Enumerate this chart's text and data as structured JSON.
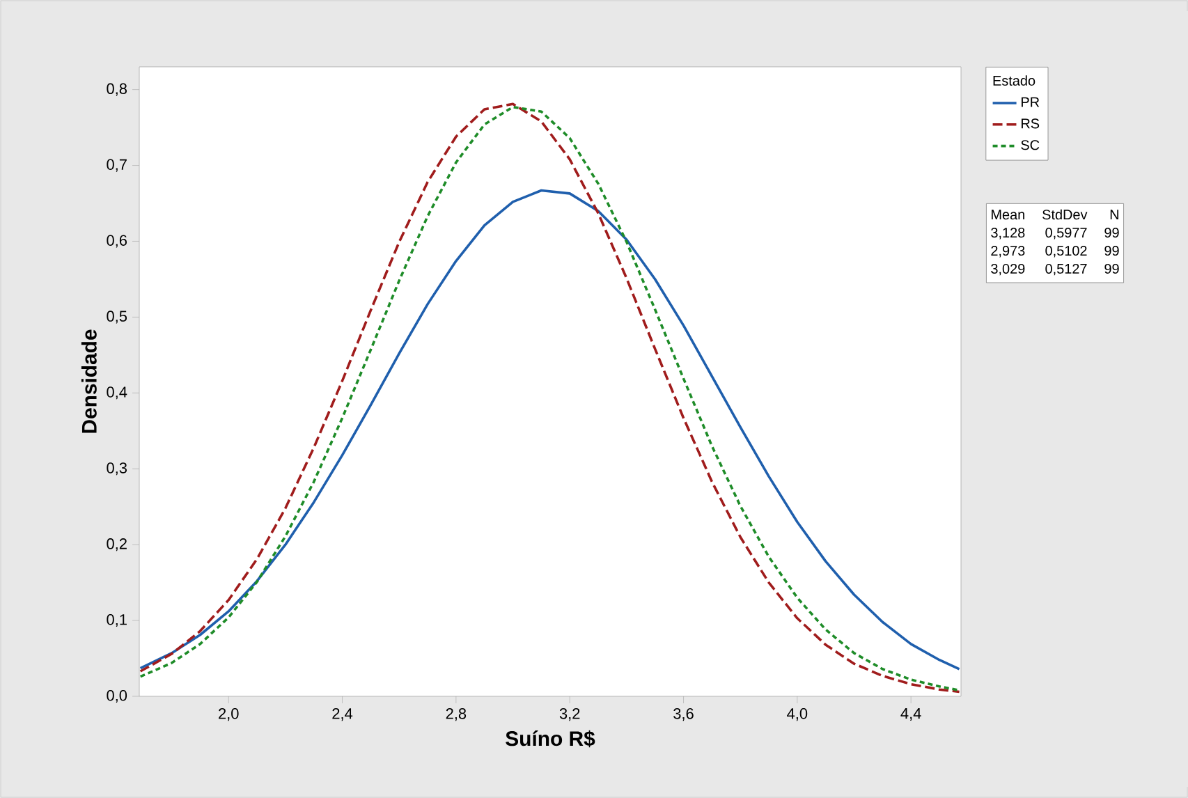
{
  "chart_data": {
    "type": "line",
    "xlabel": "Suíno R$",
    "ylabel": "Densidade",
    "legend_title": "Estado",
    "legend": "right",
    "grid": false,
    "marker": "none",
    "xlim": [
      1.686,
      4.576
    ],
    "ylim": [
      0,
      0.83
    ],
    "xticks": [
      {
        "value": 2.0,
        "label": "2,0"
      },
      {
        "value": 2.4,
        "label": "2,4"
      },
      {
        "value": 2.8,
        "label": "2,8"
      },
      {
        "value": 3.2,
        "label": "3,2"
      },
      {
        "value": 3.6,
        "label": "3,6"
      },
      {
        "value": 4.0,
        "label": "4,0"
      },
      {
        "value": 4.4,
        "label": "4,4"
      }
    ],
    "yticks": [
      {
        "value": 0,
        "label": "0,0"
      },
      {
        "value": 0.1,
        "label": "0,1"
      },
      {
        "value": 0.2,
        "label": "0,2"
      },
      {
        "value": 0.3,
        "label": "0,3"
      },
      {
        "value": 0.4,
        "label": "0,4"
      },
      {
        "value": 0.5,
        "label": "0,5"
      },
      {
        "value": 0.6,
        "label": "0,6"
      },
      {
        "value": 0.7,
        "label": "0,7"
      },
      {
        "value": 0.8,
        "label": "0,8"
      }
    ],
    "x": [
      1.69,
      1.8,
      1.9,
      2.0,
      2.1,
      2.2,
      2.3,
      2.4,
      2.5,
      2.6,
      2.7,
      2.8,
      2.9,
      3.0,
      3.1,
      3.2,
      3.3,
      3.4,
      3.5,
      3.6,
      3.7,
      3.8,
      3.9,
      4.0,
      4.1,
      4.2,
      4.3,
      4.4,
      4.5,
      4.57
    ],
    "series": [
      {
        "name": "PR",
        "color": "#1f5fad",
        "line_style": "solid",
        "values": [
          0.037,
          0.057,
          0.081,
          0.112,
          0.152,
          0.2,
          0.256,
          0.318,
          0.384,
          0.452,
          0.517,
          0.574,
          0.621,
          0.652,
          0.667,
          0.663,
          0.64,
          0.602,
          0.55,
          0.489,
          0.422,
          0.355,
          0.29,
          0.23,
          0.178,
          0.134,
          0.098,
          0.069,
          0.048,
          0.036
        ]
      },
      {
        "name": "RS",
        "color": "#a01c1c",
        "line_style": "dashed",
        "values": [
          0.033,
          0.056,
          0.086,
          0.127,
          0.181,
          0.248,
          0.328,
          0.416,
          0.509,
          0.599,
          0.678,
          0.738,
          0.774,
          0.781,
          0.758,
          0.708,
          0.637,
          0.551,
          0.458,
          0.367,
          0.283,
          0.21,
          0.15,
          0.103,
          0.068,
          0.043,
          0.027,
          0.016,
          0.009,
          0.006
        ]
      },
      {
        "name": "SC",
        "color": "#1e8c28",
        "line_style": "dotted",
        "values": [
          0.026,
          0.044,
          0.069,
          0.104,
          0.151,
          0.211,
          0.283,
          0.367,
          0.457,
          0.548,
          0.633,
          0.704,
          0.754,
          0.777,
          0.771,
          0.736,
          0.676,
          0.599,
          0.51,
          0.419,
          0.33,
          0.251,
          0.184,
          0.13,
          0.088,
          0.057,
          0.036,
          0.022,
          0.013,
          0.008
        ]
      }
    ],
    "annotations": [
      "Mean",
      "StdDev",
      "N",
      "3,128",
      "0,5977",
      "99",
      "2,973",
      "0,5102",
      "99",
      "3,029",
      "0,5127",
      "99"
    ]
  }
}
